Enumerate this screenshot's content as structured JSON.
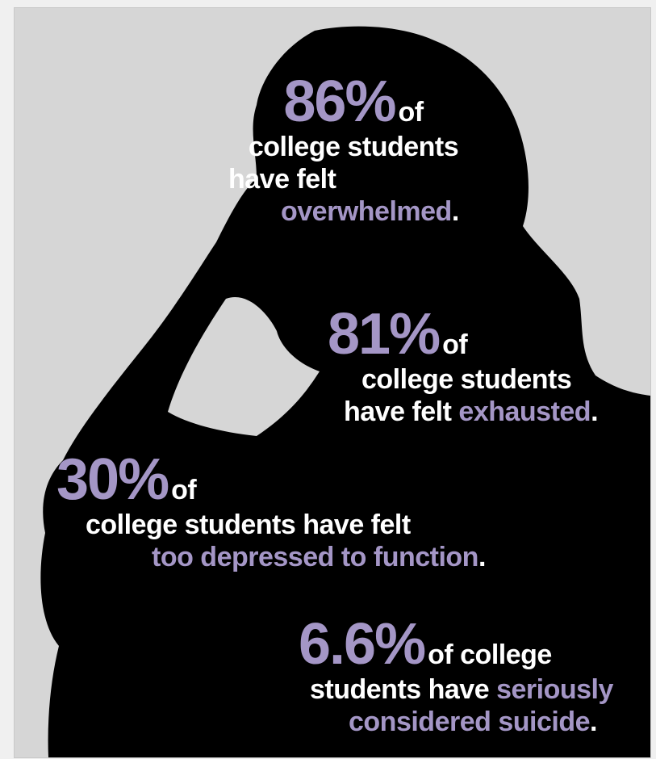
{
  "colors": {
    "background": "#d6d6d6",
    "silhouette": "#000000",
    "text": "#ffffff",
    "accent": "#a496c6"
  },
  "stats": [
    {
      "percent": "86%",
      "of": "of",
      "line1": "college students",
      "line2": "have felt",
      "highlight": "overwhelmed",
      "end": "."
    },
    {
      "percent": "81%",
      "of": "of",
      "line1": "college students",
      "line2": "have felt",
      "highlight": "exhausted",
      "end": "."
    },
    {
      "percent": "30%",
      "of": "of",
      "line1": "college students have felt",
      "highlight": "too depressed to function",
      "end": "."
    },
    {
      "percent": "6.6%",
      "of": "of college",
      "line1": "students have",
      "highlight_inline": "seriously",
      "highlight": "considered suicide",
      "end": "."
    }
  ]
}
